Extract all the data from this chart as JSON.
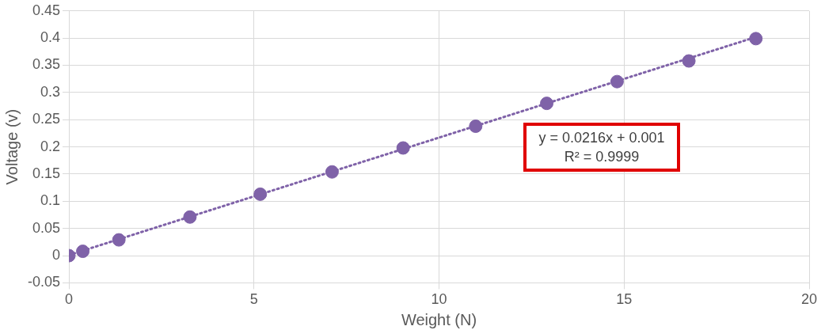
{
  "chart_data": {
    "type": "scatter",
    "xlabel": "Weight (N)",
    "ylabel": "Voltage (v)",
    "xlim": [
      0,
      20
    ],
    "xticks": [
      0,
      5,
      10,
      15,
      20
    ],
    "ylim": [
      -0.05,
      0.45
    ],
    "yticks": [
      -0.05,
      0,
      0.05,
      0.1,
      0.15,
      0.2,
      0.25,
      0.3,
      0.35,
      0.4,
      0.45
    ],
    "grid": true,
    "legend": false,
    "marker": "circle",
    "annotations": [
      "y = 0.0216x + 0.001",
      "R² = 0.9999"
    ],
    "series": [
      {
        "color": "#7f62a8",
        "x": [
          0,
          0.375,
          1.35,
          3.27,
          5.17,
          7.11,
          9.03,
          10.99,
          12.91,
          14.81,
          16.75,
          18.56
        ],
        "values": [
          0,
          0.008,
          0.029,
          0.071,
          0.113,
          0.154,
          0.198,
          0.238,
          0.28,
          0.32,
          0.358,
          0.399
        ]
      },
      {
        "type": "line",
        "color": "#7f62a8",
        "line_style": "dotted",
        "marker": "none",
        "x": [
          0,
          18.56
        ],
        "values": [
          0.001,
          0.402
        ]
      }
    ]
  }
}
